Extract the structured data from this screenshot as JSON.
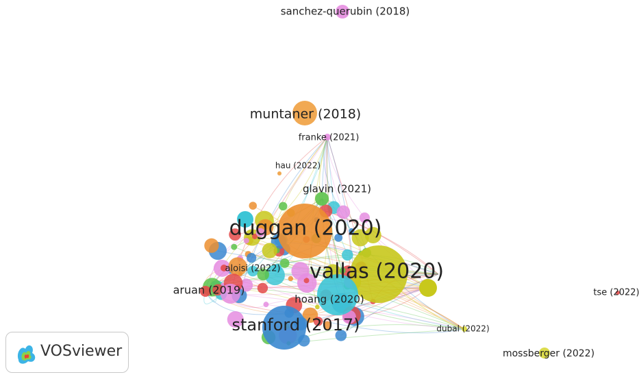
{
  "nodes": [
    {
      "label": "sanchez-querubin (2018)"
    },
    {
      "label": "muntaner (2018)"
    },
    {
      "label": "franke (2021)"
    },
    {
      "label": "hau (2022)"
    },
    {
      "label": "glavin (2021)"
    },
    {
      "label": "duggan (2020)"
    },
    {
      "label": "aloisi (2022)"
    },
    {
      "label": "vallas (2020)"
    },
    {
      "label": "aruan (2019)"
    },
    {
      "label": "hoang (2020)"
    },
    {
      "label": "stanford (2017)"
    },
    {
      "label": "tse (2022)"
    },
    {
      "label": "dubal (2022)"
    },
    {
      "label": "mossberger (2022)"
    }
  ],
  "logo": {
    "text": "VOSviewer"
  }
}
